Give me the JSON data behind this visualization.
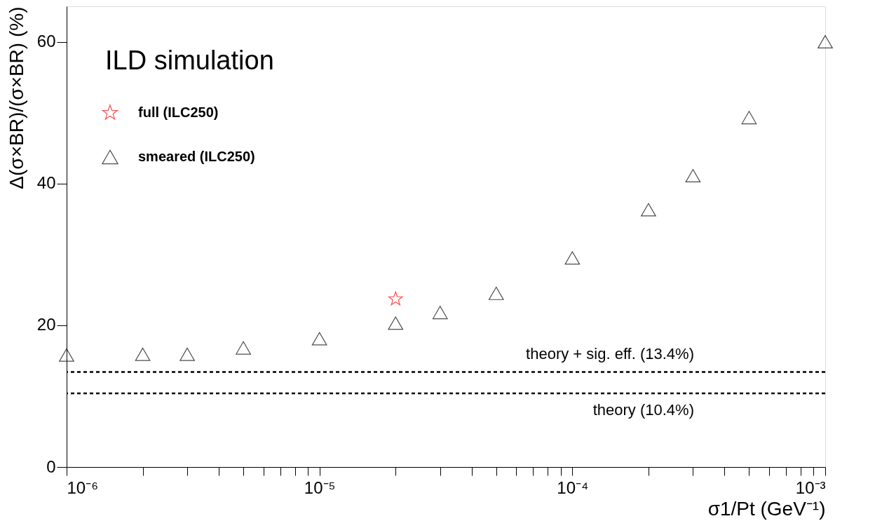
{
  "chart_data": {
    "type": "scatter",
    "xlabel": "σ1/Pt (GeV⁻¹)",
    "ylabel": "Δ(σ×BR)/(σ×BR) (%)",
    "annotations": [
      "ILD simulation"
    ],
    "log": "x",
    "xlim": [
      1e-06,
      0.001
    ],
    "ylim": [
      0,
      65
    ],
    "xticks": [
      {
        "value": 1e-06,
        "label": "10⁻⁶"
      },
      {
        "value": 2e-06,
        "label": null
      },
      {
        "value": 3e-06,
        "label": null
      },
      {
        "value": 4e-06,
        "label": null
      },
      {
        "value": 5e-06,
        "label": null
      },
      {
        "value": 6e-06,
        "label": null
      },
      {
        "value": 7e-06,
        "label": null
      },
      {
        "value": 8e-06,
        "label": null
      },
      {
        "value": 9e-06,
        "label": null
      },
      {
        "value": 1e-05,
        "label": "10⁻⁵"
      },
      {
        "value": 2e-05,
        "label": null
      },
      {
        "value": 3e-05,
        "label": null
      },
      {
        "value": 4e-05,
        "label": null
      },
      {
        "value": 5e-05,
        "label": null
      },
      {
        "value": 6e-05,
        "label": null
      },
      {
        "value": 7e-05,
        "label": null
      },
      {
        "value": 8e-05,
        "label": null
      },
      {
        "value": 9e-05,
        "label": null
      },
      {
        "value": 0.0001,
        "label": "10⁻⁴"
      },
      {
        "value": 0.0002,
        "label": null
      },
      {
        "value": 0.0003,
        "label": null
      },
      {
        "value": 0.0004,
        "label": null
      },
      {
        "value": 0.0005,
        "label": null
      },
      {
        "value": 0.0006,
        "label": null
      },
      {
        "value": 0.0007,
        "label": null
      },
      {
        "value": 0.0008,
        "label": null
      },
      {
        "value": 0.0009,
        "label": null
      },
      {
        "value": 0.001,
        "label": "10⁻³"
      }
    ],
    "yticks": [
      0,
      20,
      40,
      60
    ],
    "grid": false,
    "legend": "top left",
    "series": [
      {
        "name": "full (ILC250)",
        "color": "#ff0000",
        "marker": "star",
        "x": [
          2e-05
        ],
        "values": [
          23.7
        ]
      },
      {
        "name": "smeared (ILC250)",
        "color": "#000000",
        "marker": "triangle",
        "x": [
          1e-06,
          2e-06,
          3e-06,
          5e-06,
          1e-05,
          2e-05,
          3e-05,
          5e-05,
          0.0001,
          0.0002,
          0.0003,
          0.0005,
          0.001
        ],
        "values": [
          15.8,
          15.9,
          15.9,
          16.8,
          18.1,
          20.3,
          21.8,
          24.5,
          29.5,
          36.3,
          41.1,
          49.3,
          60.0
        ]
      }
    ],
    "ref_lines": [
      {
        "axis": "y",
        "value": 13.4,
        "label": "theory + sig. eff. (13.4%)",
        "line_style": "dashed",
        "color": "#000000"
      },
      {
        "axis": "y",
        "value": 10.4,
        "label": "theory (10.4%)",
        "line_style": "dashed",
        "color": "#000000"
      }
    ]
  }
}
